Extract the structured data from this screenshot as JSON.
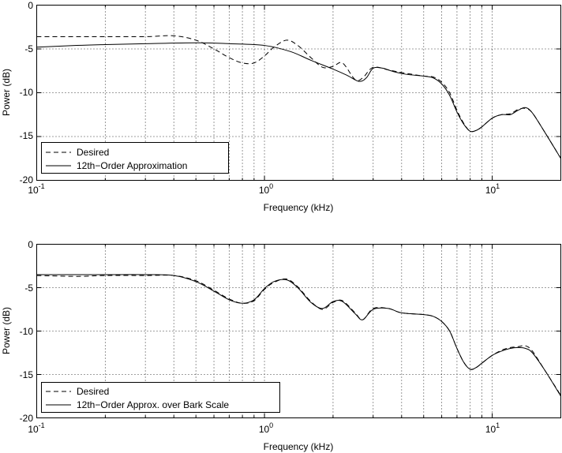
{
  "chart_data": [
    {
      "type": "line",
      "xlabel": "Frequency (kHz)",
      "ylabel": "Power (dB)",
      "xscale": "log",
      "xlim": [
        0.1,
        20
      ],
      "ylim": [
        -20,
        0
      ],
      "xticks": [
        "10",
        "10",
        "10"
      ],
      "xtick_exp": [
        "-1",
        "0",
        "1"
      ],
      "yticks": [
        "0",
        "-5",
        "-10",
        "-15",
        "-20"
      ],
      "grid": true,
      "legend_position": "bottom-left",
      "series": [
        {
          "name": "Desired",
          "style": "dashed",
          "x": [
            0.1,
            0.15,
            0.2,
            0.3,
            0.4,
            0.5,
            0.6,
            0.7,
            0.8,
            0.9,
            1.0,
            1.1,
            1.25,
            1.4,
            1.6,
            1.8,
            2.0,
            2.2,
            2.5,
            2.7,
            3.0,
            3.5,
            4.0,
            5.0,
            5.5,
            6.0,
            6.5,
            7.0,
            7.5,
            8.0,
            8.5,
            9.0,
            10.0,
            11.0,
            12.0,
            13.0,
            14.0,
            15.0,
            17.0,
            20.0
          ],
          "y": [
            -3.6,
            -3.6,
            -3.6,
            -3.6,
            -3.5,
            -4.0,
            -5.0,
            -6.0,
            -6.6,
            -6.6,
            -5.8,
            -4.8,
            -4.0,
            -4.6,
            -6.0,
            -7.1,
            -7.0,
            -6.6,
            -8.5,
            -8.3,
            -7.1,
            -7.4,
            -7.7,
            -8.1,
            -8.2,
            -8.8,
            -10.0,
            -12.0,
            -13.5,
            -14.4,
            -14.3,
            -13.9,
            -12.9,
            -12.5,
            -12.4,
            -11.9,
            -11.8,
            -12.3,
            -14.5,
            -17.5
          ]
        },
        {
          "name": "12th−Order Approximation",
          "style": "solid",
          "x": [
            0.1,
            0.15,
            0.2,
            0.3,
            0.5,
            0.7,
            1.0,
            1.3,
            1.6,
            2.0,
            2.3,
            2.6,
            2.8,
            3.0,
            3.3,
            3.7,
            4.2,
            5.0,
            5.5,
            6.0,
            6.5,
            7.0,
            7.5,
            8.0,
            8.5,
            9.0,
            10.0,
            11.0,
            12.0,
            13.0,
            14.0,
            15.0,
            17.0,
            20.0
          ],
          "y": [
            -4.8,
            -4.6,
            -4.5,
            -4.4,
            -4.3,
            -4.4,
            -4.6,
            -5.3,
            -6.3,
            -7.3,
            -8.0,
            -8.7,
            -8.3,
            -7.2,
            -7.2,
            -7.6,
            -7.9,
            -8.1,
            -8.3,
            -9.0,
            -10.3,
            -12.2,
            -13.6,
            -14.4,
            -14.3,
            -13.9,
            -12.9,
            -12.5,
            -12.5,
            -12.0,
            -11.7,
            -12.3,
            -14.5,
            -17.5
          ]
        }
      ]
    },
    {
      "type": "line",
      "xlabel": "Frequency (kHz)",
      "ylabel": "Power (dB)",
      "xscale": "log",
      "xlim": [
        0.1,
        20
      ],
      "ylim": [
        -20,
        0
      ],
      "xticks": [
        "10",
        "10",
        "10"
      ],
      "xtick_exp": [
        "-1",
        "0",
        "1"
      ],
      "yticks": [
        "0",
        "-5",
        "-10",
        "-15",
        "-20"
      ],
      "grid": true,
      "legend_position": "bottom-left",
      "series": [
        {
          "name": "Desired",
          "style": "dashed",
          "x": [
            0.1,
            0.15,
            0.2,
            0.3,
            0.4,
            0.5,
            0.6,
            0.7,
            0.8,
            0.9,
            1.0,
            1.1,
            1.25,
            1.4,
            1.6,
            1.8,
            2.0,
            2.2,
            2.5,
            2.7,
            3.0,
            3.5,
            4.0,
            5.0,
            5.5,
            6.0,
            6.5,
            7.0,
            7.5,
            8.0,
            8.5,
            9.0,
            10.0,
            11.0,
            12.0,
            13.0,
            14.0,
            15.0,
            17.0,
            20.0
          ],
          "y": [
            -3.6,
            -3.7,
            -3.6,
            -3.6,
            -3.6,
            -4.2,
            -5.3,
            -6.3,
            -6.8,
            -6.5,
            -5.2,
            -4.4,
            -4.0,
            -4.9,
            -6.6,
            -7.5,
            -6.7,
            -6.5,
            -7.9,
            -8.7,
            -7.4,
            -7.4,
            -7.9,
            -8.1,
            -8.3,
            -8.9,
            -10.0,
            -12.0,
            -13.6,
            -14.4,
            -14.2,
            -13.7,
            -12.8,
            -12.2,
            -11.9,
            -11.8,
            -11.7,
            -12.3,
            -14.5,
            -17.4
          ]
        },
        {
          "name": "12th−Order Approx. over Bark Scale",
          "style": "solid",
          "x": [
            0.1,
            0.15,
            0.2,
            0.3,
            0.4,
            0.5,
            0.6,
            0.7,
            0.8,
            0.9,
            1.0,
            1.1,
            1.25,
            1.4,
            1.6,
            1.8,
            2.0,
            2.2,
            2.5,
            2.7,
            3.0,
            3.5,
            4.0,
            5.0,
            5.5,
            6.0,
            6.5,
            7.0,
            7.5,
            8.0,
            8.5,
            9.0,
            10.0,
            11.0,
            12.0,
            13.0,
            14.0,
            15.0,
            17.0,
            20.0
          ],
          "y": [
            -3.5,
            -3.5,
            -3.5,
            -3.5,
            -3.6,
            -4.3,
            -5.4,
            -6.4,
            -6.8,
            -6.4,
            -5.1,
            -4.3,
            -4.1,
            -5.0,
            -6.7,
            -7.4,
            -6.6,
            -6.6,
            -8.0,
            -8.7,
            -7.5,
            -7.4,
            -7.9,
            -8.1,
            -8.3,
            -8.9,
            -10.0,
            -12.0,
            -13.6,
            -14.4,
            -14.2,
            -13.7,
            -12.8,
            -12.3,
            -12.0,
            -11.9,
            -12.0,
            -12.5,
            -14.5,
            -17.5
          ]
        }
      ]
    }
  ]
}
